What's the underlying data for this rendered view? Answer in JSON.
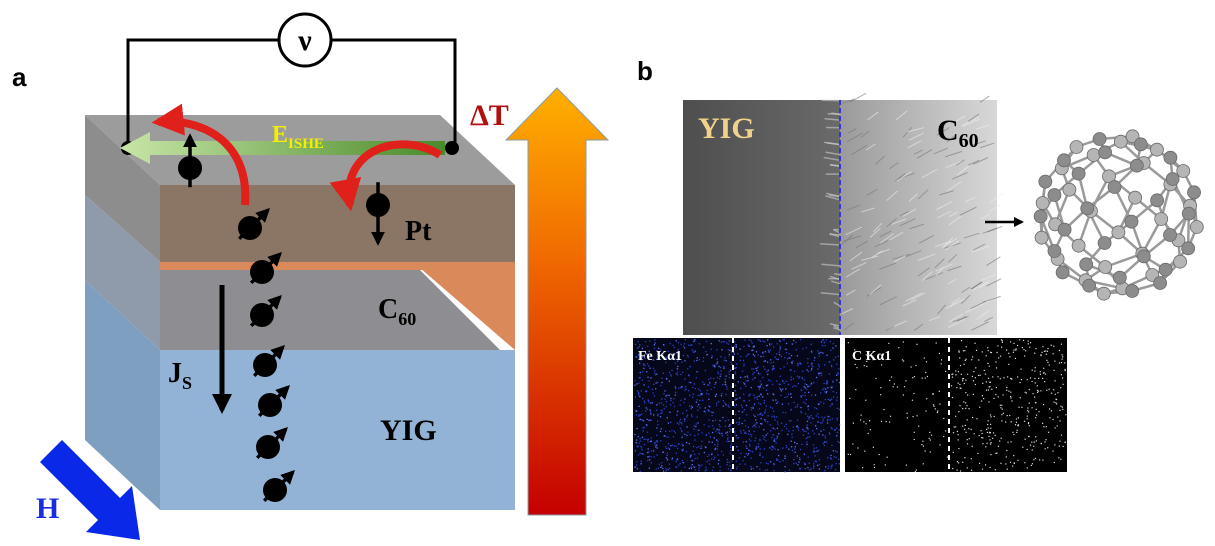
{
  "panel_a": {
    "label": "a",
    "voltmeter": "ν",
    "delta_t": "ΔT",
    "e_ishe": {
      "main": "E",
      "sub": "ISHE"
    },
    "pt": "Pt",
    "c60": {
      "main": "C",
      "sub": "60"
    },
    "js": {
      "main": "J",
      "sub": "S"
    },
    "yig": "YIG",
    "h": "H"
  },
  "panel_b": {
    "label": "b",
    "sem": {
      "yig": "YIG",
      "c60": {
        "main": "C",
        "sub": "60"
      }
    },
    "eds": [
      "Fe Kα1",
      "C Kα1"
    ]
  }
}
